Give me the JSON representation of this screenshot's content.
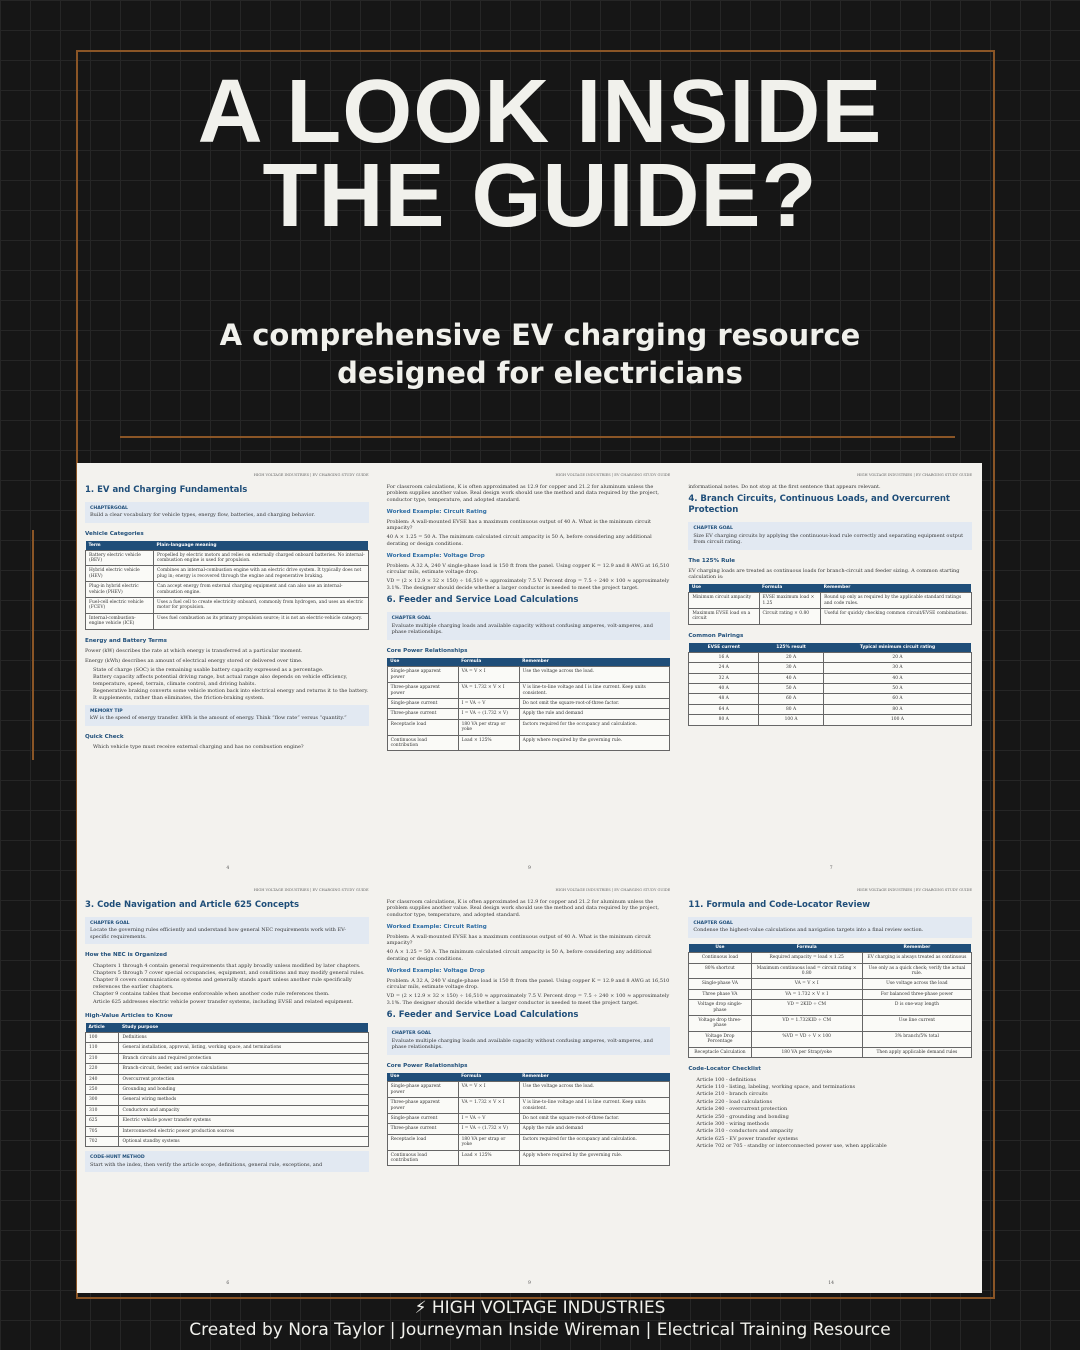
{
  "header": {
    "title": "A LOOK INSIDE THE GUIDE?",
    "subtitle": "A comprehensive EV charging resource designed for electricians"
  },
  "pages": [
    {
      "running_head": "HIGH VOLTAGE INDUSTRIES | EV CHARGING STUDY GUIDE",
      "blocks": [
        {
          "h1": "1. EV and Charging Fundamentals"
        },
        {
          "goal": {
            "label": "CHAPTERGOAL",
            "text": "Build a clear vocabulary for vehicle types, energy flow, batteries, and charging behavior."
          }
        },
        {
          "h2": "Vehicle Categories"
        },
        {
          "table": {
            "header": [
              "Term",
              "Plain-language meaning"
            ],
            "rows": [
              [
                "Battery electric vehicle (BEV)",
                "Propelled by electric motors and relies on externally charged onboard batteries. No internal-combustion engine is used for propulsion."
              ],
              [
                "Hybrid electric vehicle (HEV)",
                "Combines an internal-combustion engine with an electric drive system. It typically does not plug in; energy is recovered through the engine and regenerative braking."
              ],
              [
                "Plug-in hybrid electric vehicle (PHEV)",
                "Can accept energy from external charging equipment and can also use an internal-combustion engine."
              ],
              [
                "Fuel-cell electric vehicle (FCEV)",
                "Uses a fuel cell to create electricity onboard, commonly from hydrogen, and uses an electric motor for propulsion."
              ],
              [
                "Internal-combustion-engine vehicle (ICE)",
                "Uses fuel combustion as its primary propulsion source; it is not an electric-vehicle category."
              ]
            ]
          }
        },
        {
          "h2": "Energy and Battery Terms"
        },
        {
          "p": "Power (kW) describes the rate at which energy is transferred at a particular moment."
        },
        {
          "p": "Energy (kWh) describes an amount of electrical energy stored or delivered over time."
        },
        {
          "li": "State of charge (SOC) is the remaining usable battery capacity expressed as a percentage."
        },
        {
          "li": "Battery capacity affects potential driving range, but actual range also depends on vehicle efficiency, temperature, speed, terrain, climate control, and driving habits."
        },
        {
          "li": "Regenerative braking converts some vehicle motion back into electrical energy and returns it to the battery. It supplements, rather than eliminates, the friction-braking system."
        },
        {
          "goal": {
            "label": "MEMORY TIP",
            "text": "kW is the speed of energy transfer. kWh is the amount of energy. Think “flow rate” versus “quantity.”"
          }
        },
        {
          "h2": "Quick Check"
        },
        {
          "li": "Which vehicle type must receive external charging and has no combustion engine?"
        }
      ],
      "page_number": "4"
    },
    {
      "running_head": "HIGH VOLTAGE INDUSTRIES | EV CHARGING STUDY GUIDE",
      "blocks": [
        {
          "p": "For classroom calculations, K is often approximated as 12.9 for copper and 21.2 for aluminum unless the problem supplies another value. Real design work should use the method and data required by the project, conductor type, temperature, and adopted standard."
        },
        {
          "h3": "Worked Example: Circuit Rating"
        },
        {
          "p": "Problem: A wall-mounted EVSE has a maximum continuous output of 40 A. What is the minimum circuit ampacity?"
        },
        {
          "p": "40 A × 1.25 = 50 A. The minimum calculated circuit ampacity is 50 A, before considering any additional derating or design conditions."
        },
        {
          "h3": "Worked Example: Voltage Drop"
        },
        {
          "p": "Problem: A 32 A, 240 V single-phase load is 150 ft from the panel. Using copper K = 12.9 and 8 AWG at 16,510 circular mils, estimate voltage drop."
        },
        {
          "p": "VD = (2 × 12.9 × 32 × 150) ÷ 16,510 ≈ approximately 7.5 V. Percent drop = 7.5 ÷ 240 × 100 ≈ approximately 3.1%. The designer should decide whether a larger conductor is needed to meet the project target."
        },
        {
          "h1": "6. Feeder and Service Load Calculations"
        },
        {
          "goal": {
            "label": "CHAPTER GOAL",
            "text": "Evaluate multiple charging loads and available capacity without confusing amperes, volt-amperes, and phase relationships."
          }
        },
        {
          "h2": "Core Power Relationships"
        },
        {
          "table": {
            "header": [
              "Use",
              "Formula",
              "Remember"
            ],
            "rows": [
              [
                "Single-phase apparent power",
                "VA = V × I",
                "Use the voltage across the load."
              ],
              [
                "Three-phase apparent power",
                "VA = 1.732 × V × I",
                "V is line-to-line voltage and I is line current. Keep units consistent."
              ],
              [
                "Single-phase current",
                "I = VA ÷ V",
                "Do not omit the square-root-of-three factor."
              ],
              [
                "Three-phase current",
                "I = VA ÷ (1.732 × V)",
                "Apply the rule and demand"
              ],
              [
                "Receptacle load",
                "180 VA per strap or yoke",
                "factors required for the occupancy and calculation."
              ],
              [
                "Continuous load contribution",
                "Load × 125%",
                "Apply where required by the governing rule."
              ]
            ]
          }
        }
      ],
      "page_number": "9"
    },
    {
      "running_head": "HIGH VOLTAGE INDUSTRIES | EV CHARGING STUDY GUIDE",
      "blocks": [
        {
          "p": "informational notes. Do not stop at the first sentence that appears relevant."
        },
        {
          "h1": "4. Branch Circuits, Continuous Loads, and Overcurrent Protection"
        },
        {
          "goal": {
            "label": "CHAPTER GOAL",
            "text": "Size EV charging circuits by applying the continuous-load rule correctly and separating equipment output from circuit rating."
          }
        },
        {
          "h2": "The 125% Rule"
        },
        {
          "p": "EV charging loads are treated as continuous loads for branch-circuit and feeder sizing. A common starting calculation is:"
        },
        {
          "table": {
            "header": [
              "Use",
              "Formula",
              "Remember"
            ],
            "rows": [
              [
                "Minimum circuit ampacity",
                "EVSE maximum load × 1.25",
                "Round up only as required by the applicable standard ratings and code rules."
              ],
              [
                "Maximum EVSE load on a circuit",
                "Circuit rating × 0.80",
                "Useful for quickly checking common circuit/EVSE combinations."
              ]
            ]
          }
        },
        {
          "h2": "Common Pairings"
        },
        {
          "table": {
            "center": true,
            "header": [
              "EVSE current",
              "125% result",
              "Typical minimum circuit rating"
            ],
            "rows": [
              [
                "16 A",
                "20 A",
                "20 A"
              ],
              [
                "24 A",
                "30 A",
                "30 A"
              ],
              [
                "32 A",
                "40 A",
                "40 A"
              ],
              [
                "40 A",
                "50 A",
                "50 A"
              ],
              [
                "48 A",
                "60 A",
                "60 A"
              ],
              [
                "64 A",
                "80 A",
                "80 A"
              ],
              [
                "80 A",
                "100 A",
                "100 A"
              ]
            ]
          }
        }
      ],
      "page_number": "7"
    },
    {
      "running_head": "HIGH VOLTAGE INDUSTRIES | EV CHARGING STUDY GUIDE",
      "blocks": [
        {
          "h1": "3. Code Navigation and Article 625 Concepts"
        },
        {
          "goal": {
            "label": "CHAPTER GOAL",
            "text": "Locate the governing rules efficiently and understand how general NEC requirements work with EV-specific requirements."
          }
        },
        {
          "h2": "How the NEC is Organized"
        },
        {
          "li": "Chapters 1 through 4 contain general requirements that apply broadly unless modified by later chapters."
        },
        {
          "li": "Chapters 5 through 7 cover special occupancies, equipment, and conditions and may modify general rules."
        },
        {
          "li": "Chapter 8 covers communications systems and generally stands apart unless another rule specifically references the earlier chapters."
        },
        {
          "li": "Chapter 9 contains tables that become enforceable when another code rule references them."
        },
        {
          "li": "Article 625 addresses electric vehicle power transfer systems, including EVSE and related equipment."
        },
        {
          "h2": "High-Value Articles to Know"
        },
        {
          "table": {
            "header": [
              "Article",
              "Study purpose"
            ],
            "rows": [
              [
                "100",
                "Definitions"
              ],
              [
                "110",
                "General installation, approval, listing, working space, and terminations"
              ],
              [
                "210",
                "Branch circuits and required protection"
              ],
              [
                "220",
                "Branch-circuit, feeder, and service calculations"
              ],
              [
                "240",
                "Overcurrent protection"
              ],
              [
                "250",
                "Grounding and bonding"
              ],
              [
                "300",
                "General wiring methods"
              ],
              [
                "310",
                "Conductors and ampacity"
              ],
              [
                "625",
                "Electric vehicle power transfer systems"
              ],
              [
                "705",
                "Interconnected electric power production sources"
              ],
              [
                "702",
                "Optional standby systems"
              ]
            ]
          }
        },
        {
          "goal": {
            "label": "CODE-HUNT METHOD",
            "text": "Start with the index, then verify the article scope, definitions, general rule, exceptions, and"
          }
        }
      ],
      "page_number": "6"
    },
    {
      "running_head": "HIGH VOLTAGE INDUSTRIES | EV CHARGING STUDY GUIDE",
      "blocks": [
        {
          "p": "For classroom calculations, K is often approximated as 12.9 for copper and 21.2 for aluminum unless the problem supplies another value. Real design work should use the method and data required by the project, conductor type, temperature, and adopted standard."
        },
        {
          "h3": "Worked Example: Circuit Rating"
        },
        {
          "p": "Problem: A wall-mounted EVSE has a maximum continuous output of 40 A. What is the minimum circuit ampacity?"
        },
        {
          "p": "40 A × 1.25 = 50 A. The minimum calculated circuit ampacity is 50 A, before considering any additional derating or design conditions."
        },
        {
          "h3": "Worked Example: Voltage Drop"
        },
        {
          "p": "Problem: A 32 A, 240 V single-phase load is 150 ft from the panel. Using copper K = 12.9 and 8 AWG at 16,510 circular mils, estimate voltage drop."
        },
        {
          "p": "VD = (2 × 12.9 × 32 × 150) ÷ 16,510 ≈ approximately 7.5 V. Percent drop = 7.5 ÷ 240 × 100 ≈ approximately 3.1%. The designer should decide whether a larger conductor is needed to meet the project target."
        },
        {
          "h1": "6. Feeder and Service Load Calculations"
        },
        {
          "goal": {
            "label": "CHAPTER GOAL",
            "text": "Evaluate multiple charging loads and available capacity without confusing amperes, volt-amperes, and phase relationships."
          }
        },
        {
          "h2": "Core Power Relationships"
        },
        {
          "table": {
            "header": [
              "Use",
              "Formula",
              "Remember"
            ],
            "rows": [
              [
                "Single-phase apparent power",
                "VA = V × I",
                "Use the voltage across the load."
              ],
              [
                "Three-phase apparent power",
                "VA = 1.732 × V × I",
                "V is line-to-line voltage and I is line current. Keep units consistent."
              ],
              [
                "Single-phase current",
                "I = VA ÷ V",
                "Do not omit the square-root-of-three factor."
              ],
              [
                "Three-phase current",
                "I = VA ÷ (1.732 × V)",
                "Apply the rule and demand"
              ],
              [
                "Receptacle load",
                "180 VA per strap or yoke",
                "factors required for the occupancy and calculation."
              ],
              [
                "Continuous load contribution",
                "Load × 125%",
                "Apply where required by the governing rule."
              ]
            ]
          }
        }
      ],
      "page_number": "9"
    },
    {
      "running_head": "HIGH VOLTAGE INDUSTRIES | EV CHARGING STUDY GUIDE",
      "blocks": [
        {
          "h1": "11. Formula and Code-Locator Review"
        },
        {
          "goal": {
            "label": "CHAPTER GOAL",
            "text": "Condense the highest-value calculations and navigation targets into a final review section."
          }
        },
        {
          "table": {
            "center": true,
            "header": [
              "Use",
              "Formula",
              "Remember"
            ],
            "rows": [
              [
                "Continuous load",
                "Required ampacity = load × 1.25",
                "EV charging is always treated as continuous"
              ],
              [
                "80% shortcut",
                "Maximum continuous load = circuit rating × 0.80",
                "Use only as a quick check; verify the actual rule."
              ],
              [
                "Single-phase VA",
                "VA = V × I",
                "Use voltage across the load"
              ],
              [
                "Three phase VA",
                "VA = 1.732 × V × I",
                "For balanced three-phase power"
              ],
              [
                "Voltage drop single-phase",
                "VD = 2KID ÷ CM",
                "D is one-way length"
              ],
              [
                "Voltage drop three-phase",
                "VD = 1.732KID ÷ CM",
                "Use line current"
              ],
              [
                "Voltage Drop Percentage",
                "%VD = VD ÷ V × 100",
                "3% branch/5% total"
              ],
              [
                "Receptacle Calculation",
                "180 VA per Strap/yoke",
                "Then apply applicable demand rules"
              ]
            ]
          }
        },
        {
          "h2": "Code-Locator Checklist"
        },
        {
          "li": "Article 100 - definitions"
        },
        {
          "li": "Article 110 - listing, labeling, working space, and terminations"
        },
        {
          "li": "Article 210 - branch circuits"
        },
        {
          "li": "Article 220 - load calculations"
        },
        {
          "li": "Article 240 - overcurrent protection"
        },
        {
          "li": "Article 250 - grounding and bonding"
        },
        {
          "li": "Article 300 - wiring methods"
        },
        {
          "li": "Article 310 - conductors and ampacity"
        },
        {
          "li": "Article 625 - EV power transfer systems"
        },
        {
          "li": "Article 702 or 705 - standby or interconnected power use, when applicable"
        }
      ],
      "page_number": "14"
    }
  ],
  "footer": {
    "brand": "⚡ HIGH VOLTAGE INDUSTRIES",
    "credit": "Created by Nora Taylor | Journeyman Inside Wireman | Electrical Training Resource"
  }
}
